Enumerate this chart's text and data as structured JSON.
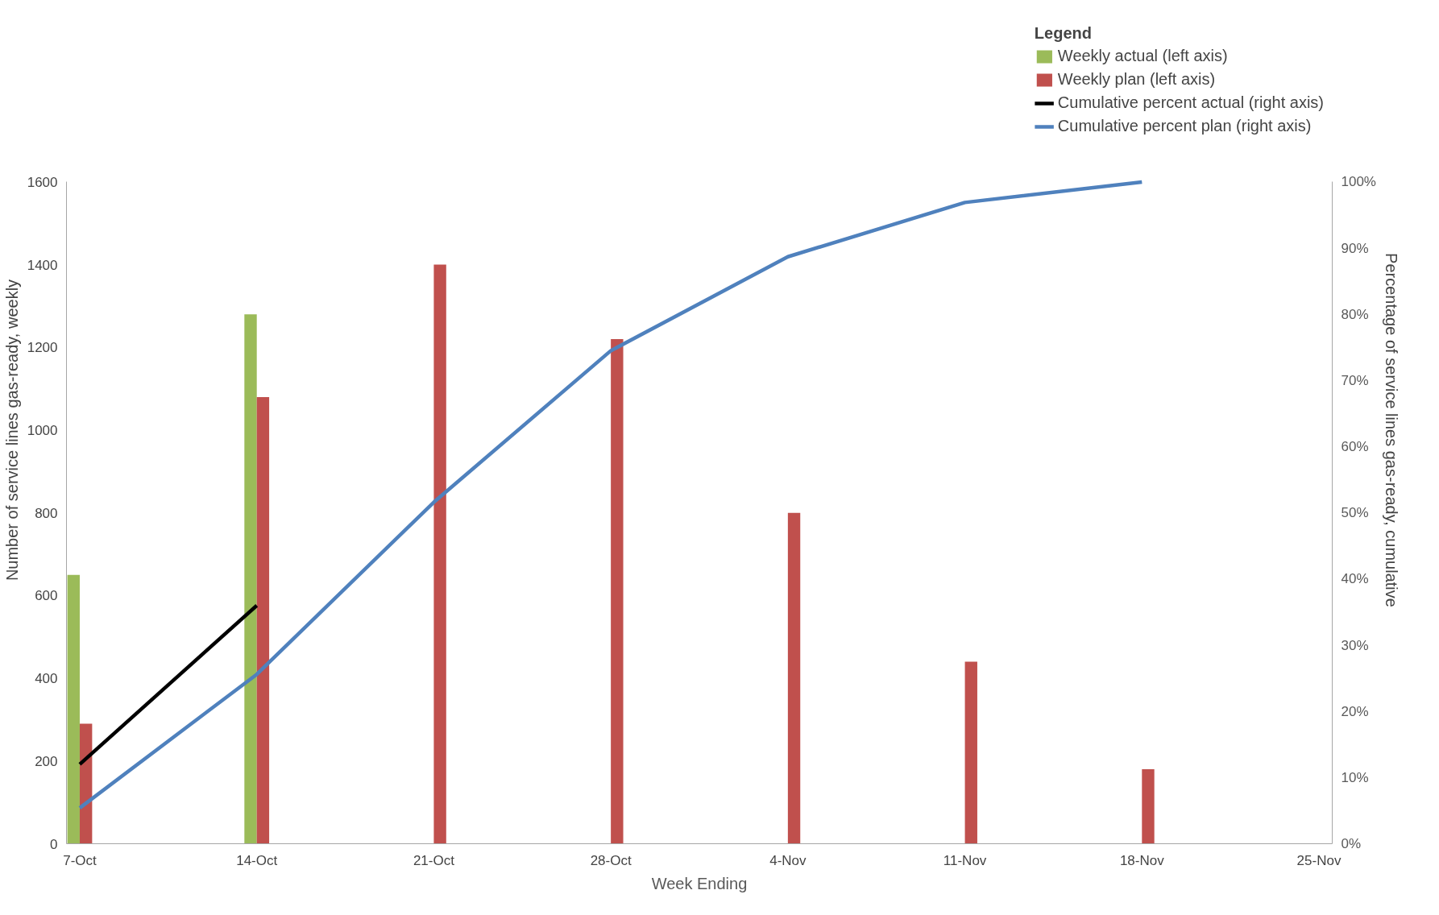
{
  "chart_data": {
    "type": "bar",
    "categories": [
      "7-Oct",
      "14-Oct",
      "21-Oct",
      "28-Oct",
      "4-Nov",
      "11-Nov",
      "18-Nov",
      "25-Nov"
    ],
    "series": [
      {
        "name": "Weekly actual (left axis)",
        "color": "#9bbb59",
        "values": [
          650,
          1280,
          null,
          null,
          null,
          null,
          null,
          null
        ]
      },
      {
        "name": "Weekly plan (left axis)",
        "color": "#c0504d",
        "values": [
          290,
          1080,
          1400,
          1220,
          800,
          440,
          180,
          null
        ]
      },
      {
        "name": "Cumulative percent actual (right axis)",
        "type": "line",
        "axis": "y2",
        "color": "#000000",
        "values": [
          12,
          36,
          null,
          null,
          null,
          null,
          null,
          null
        ]
      },
      {
        "name": "Cumulative percent plan (right axis)",
        "type": "line",
        "axis": "y2",
        "color": "#4f81bd",
        "values": [
          5.4,
          25.6,
          51.6,
          74.5,
          88.7,
          96.9,
          100,
          null
        ]
      }
    ],
    "xlabel": "Week Ending",
    "ylabel": "Number of service lines gas-ready, weekly",
    "y2label": "Percentage of service lines gas-ready, cumulative",
    "legend_title": "Legend",
    "legend": "top right",
    "grid": false,
    "marker": "none",
    "line_style": "solid",
    "ylim": [
      0,
      1600
    ],
    "yticks": [
      0,
      200,
      400,
      600,
      800,
      1000,
      1200,
      1400,
      1600
    ],
    "y2lim": [
      0,
      100
    ],
    "y2ticks": [
      {
        "value": 0,
        "label": "0%"
      },
      {
        "value": 10,
        "label": "10%"
      },
      {
        "value": 20,
        "label": "20%"
      },
      {
        "value": 30,
        "label": "30%"
      },
      {
        "value": 40,
        "label": "40%"
      },
      {
        "value": 50,
        "label": "50%"
      },
      {
        "value": 60,
        "label": "60%"
      },
      {
        "value": 70,
        "label": "70%"
      },
      {
        "value": 80,
        "label": "80%"
      },
      {
        "value": 90,
        "label": "90%"
      },
      {
        "value": 100,
        "label": "100%"
      }
    ]
  }
}
